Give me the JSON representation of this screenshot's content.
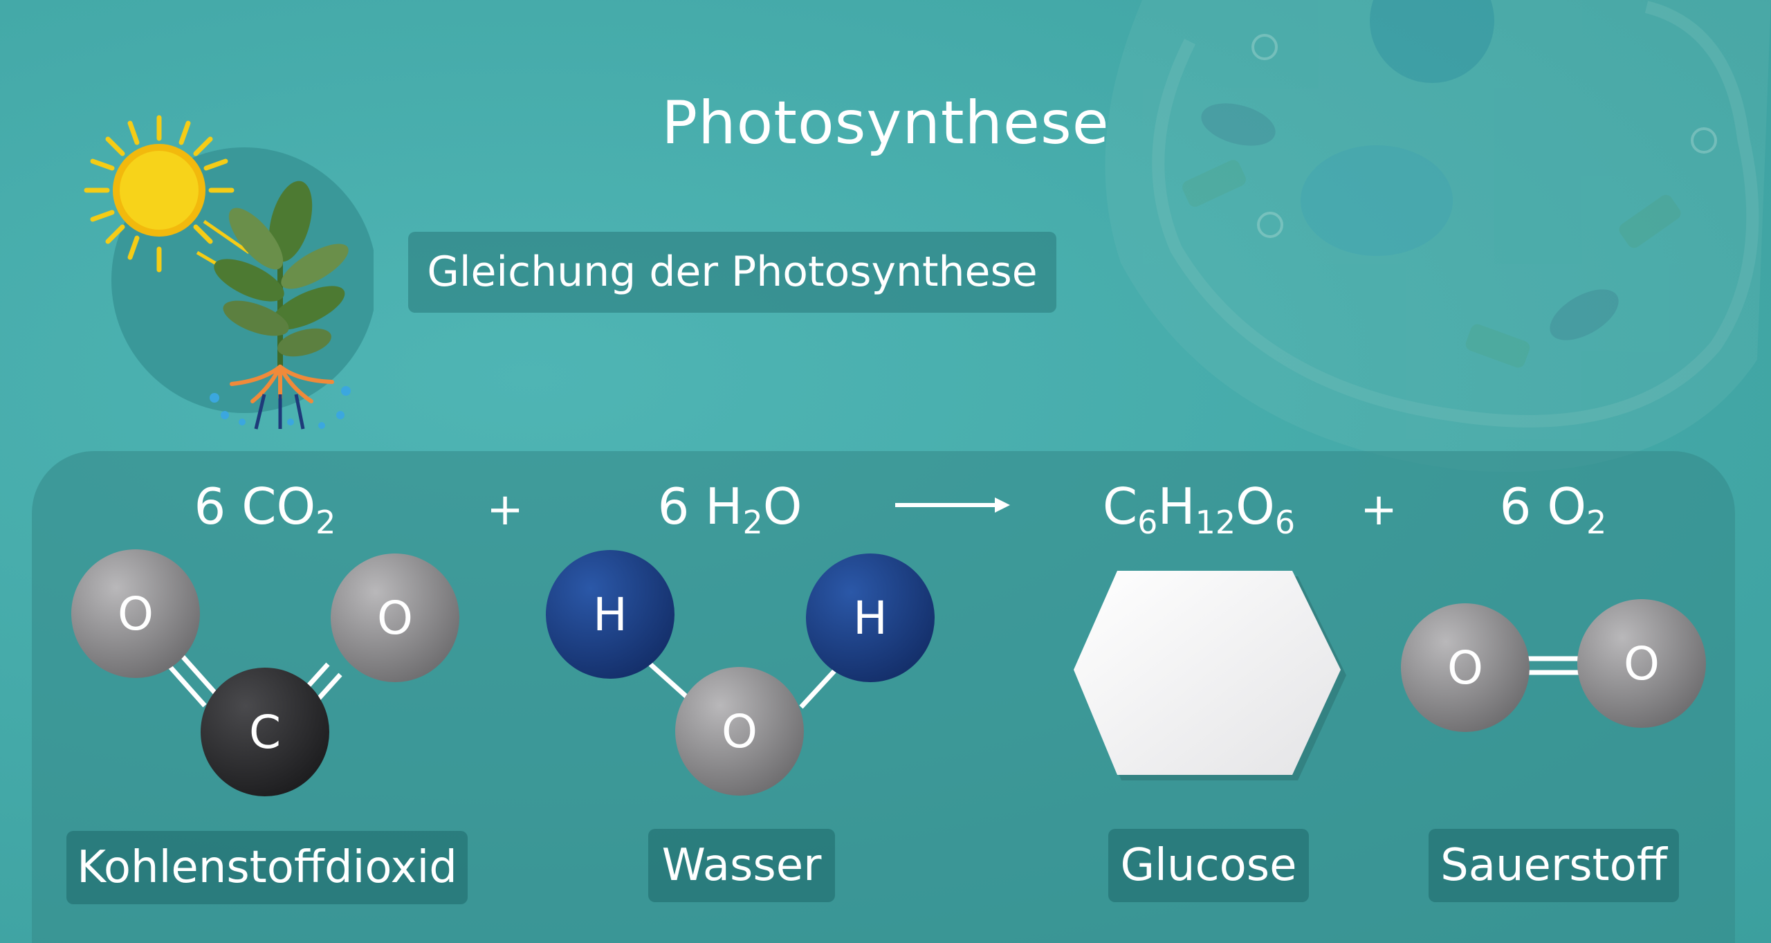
{
  "title": "Photosynthese",
  "subtitle": "Gleichung der Photosynthese",
  "equation": {
    "co2": {
      "coef": "6 CO",
      "sub": "2"
    },
    "plus1": "+",
    "h2o": {
      "pre": "6 H",
      "sub": "2",
      "post": "O"
    },
    "glucose": {
      "c": "C",
      "c_sub": "6",
      "h": "H",
      "h_sub": "12",
      "o": "O",
      "o_sub": "6"
    },
    "plus2": "+",
    "o2": {
      "coef": "6 O",
      "sub": "2"
    }
  },
  "molecules": {
    "co2": {
      "left": "O",
      "center": "C",
      "right": "O"
    },
    "h2o": {
      "left": "H",
      "center": "O",
      "right": "H"
    },
    "o2": {
      "left": "O",
      "right": "O"
    }
  },
  "labels": {
    "co2": "Kohlenstoffdioxid",
    "h2o": "Wasser",
    "glucose": "Glucose",
    "o2": "Sauerstoff"
  },
  "colors": {
    "background": "#44a9a8",
    "oxygen_atom": "#8e8d8f",
    "carbon_atom": "#2b2b2d",
    "hydrogen_atom": "#1c3e86",
    "sun": "#f7d31a"
  }
}
